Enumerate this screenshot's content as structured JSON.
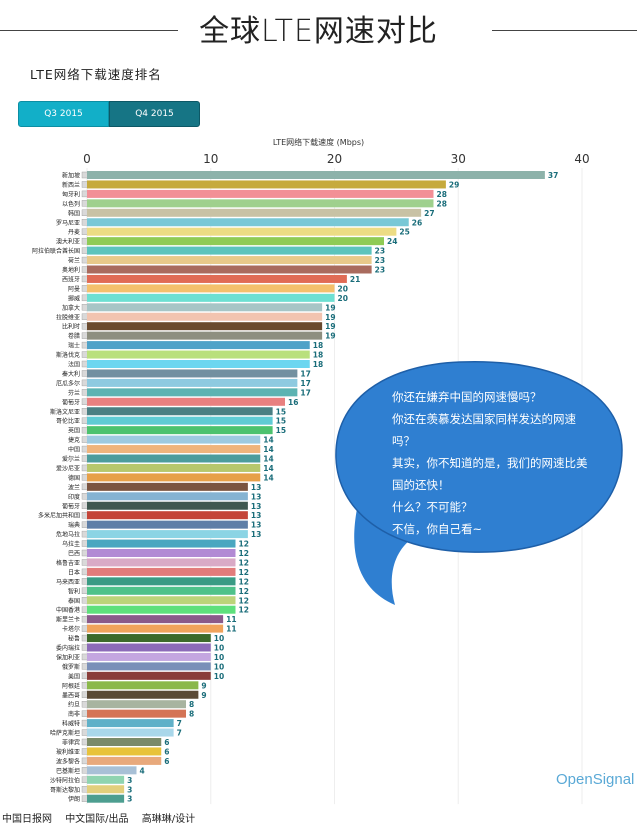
{
  "header": {
    "title": "全球LTE网速对比",
    "subtitle": "LTE网络下载速度排名"
  },
  "tabs": [
    {
      "label": "Q3 2015",
      "active": false
    },
    {
      "label": "Q4 2015",
      "active": true
    }
  ],
  "colors": {
    "tab_inactive": "#12afc8",
    "tab_active": "#167585",
    "bubble": "#2f7fd1",
    "value_label": "#1a6d7a"
  },
  "chart_data": {
    "type": "bar",
    "orientation": "horizontal",
    "title": "LTE网络下载速度 (Mbps)",
    "xlim": [
      0,
      40
    ],
    "xticks": [
      "0",
      "10",
      "20",
      "30",
      "40"
    ],
    "categories": [
      "新加坡",
      "新西兰",
      "匈牙利",
      "以色列",
      "韩国",
      "罗马尼亚",
      "丹麦",
      "澳大利亚",
      "阿拉伯联合酋长国",
      "荷兰",
      "奥地利",
      "西班牙",
      "阿曼",
      "挪威",
      "加拿大",
      "拉脱维亚",
      "比利时",
      "卷腊",
      "瑞士",
      "斯洛伐克",
      "法国",
      "秦大利",
      "厄瓜多尔",
      "芬兰",
      "葡萄牙",
      "斯洛文尼亚",
      "哥伦比亚",
      "英国",
      "捷克",
      "中国",
      "爱尔兰",
      "爱沙尼亚",
      "德国",
      "波兰",
      "印度",
      "葡萄牙",
      "多米尼加共和国",
      "瑞典",
      "危地马拉",
      "乌拉圭",
      "巴西",
      "格鲁吉亚",
      "日本",
      "马来西亚",
      "智利",
      "泰国",
      "中国香港",
      "斯里兰卡",
      "卡塔尔",
      "秘鲁",
      "委内瑞拉",
      "保加利亚",
      "俄罗斯",
      "美国",
      "阿根廷",
      "墨西哥",
      "约旦",
      "南非",
      "科威特",
      "哈萨克斯坦",
      "菲律宾",
      "玻利维亚",
      "波多黎各",
      "巴基斯坦",
      "沙特阿拉伯",
      "哥斯达黎加",
      "伊朗"
    ],
    "values": [
      37,
      29,
      28,
      28,
      27,
      26,
      25,
      24,
      23,
      23,
      23,
      21,
      20,
      20,
      19,
      19,
      19,
      19,
      18,
      18,
      18,
      17,
      17,
      17,
      16,
      15,
      15,
      15,
      14,
      14,
      14,
      14,
      14,
      13,
      13,
      13,
      13,
      13,
      13,
      12,
      12,
      12,
      12,
      12,
      12,
      12,
      12,
      11,
      11,
      10,
      10,
      10,
      10,
      10,
      9,
      9,
      8,
      8,
      7,
      7,
      6,
      6,
      6,
      4,
      3,
      3,
      3
    ],
    "bar_colors": [
      "#8db2aa",
      "#c6aa3c",
      "#f28f96",
      "#9fd08d",
      "#c8c2a5",
      "#78c8d6",
      "#ecdc84",
      "#8fcb55",
      "#5cc4bc",
      "#e8c98a",
      "#a96b5e",
      "#e06b55",
      "#f4c06c",
      "#6de0d2",
      "#a7c5c6",
      "#f2c4b0",
      "#6a4a2e",
      "#8e8f80",
      "#4fa2c8",
      "#b9e07c",
      "#6cd6f0",
      "#7290a0",
      "#8ecae0",
      "#5cb3b2",
      "#e88080",
      "#4a7f83",
      "#5fcbd4",
      "#4cc26e",
      "#9ecae0",
      "#f0b47c",
      "#4d9c9c",
      "#b7c76c",
      "#e7a048",
      "#7a5440",
      "#85b3d2",
      "#3f5850",
      "#c44438",
      "#5e7ea7",
      "#8bd4e4",
      "#4aa7c0",
      "#b28ad4",
      "#d9aac6",
      "#e27b7b",
      "#3a9b84",
      "#4fc28a",
      "#bcd47a",
      "#5ee07c",
      "#8a5a8a",
      "#f0a35c",
      "#3c6a2a",
      "#8c6bb8",
      "#c4a6e0",
      "#7a8fb8",
      "#8a3e3a",
      "#8ab84a",
      "#5a4a36",
      "#a8b4a0",
      "#d47456",
      "#5fb0c8",
      "#a9d7ea",
      "#7a8a6a",
      "#e8c33a",
      "#e8a97c",
      "#a8c0d6",
      "#8fd4b0",
      "#e2cf7c",
      "#4d9e90"
    ]
  },
  "bubble": {
    "lines": [
      "你还在嫌弃中国的网速慢吗？",
      "你还在羡慕发达国家同样发达的网速",
      "吗？",
      "其实，你不知道的是，我们的网速比美",
      "国的还快！",
      "什么？不可能？",
      "不信，你自己看~"
    ]
  },
  "brand": "OpenSignal",
  "footer": [
    "中国日报网",
    "中文国际/出品",
    "高琳琳/设计"
  ]
}
